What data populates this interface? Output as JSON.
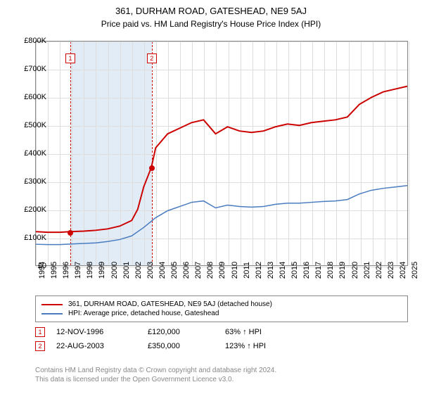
{
  "title": "361, DURHAM ROAD, GATESHEAD, NE9 5AJ",
  "subtitle": "Price paid vs. HM Land Registry's House Price Index (HPI)",
  "chart": {
    "type": "line",
    "background_color": "#ffffff",
    "grid_color": "#dddddd",
    "border_color": "#888888",
    "y": {
      "min": 0,
      "max": 800000,
      "step": 100000,
      "prefix": "£",
      "suffix": "K",
      "divisor": 1000,
      "fontsize": 11
    },
    "x": {
      "min": 1994,
      "max": 2025,
      "step": 1,
      "fontsize": 11,
      "rotation": -90
    },
    "highlight": {
      "band_color": "#e2ecf7",
      "edge_color": "#cc0000",
      "start_year": 1996.87,
      "end_year": 2003.64
    },
    "series": [
      {
        "name": "361, DURHAM ROAD, GATESHEAD, NE9 5AJ (detached house)",
        "color": "#cc0000",
        "width": 2,
        "points": [
          [
            1994,
            120000
          ],
          [
            1995,
            118000
          ],
          [
            1996,
            118000
          ],
          [
            1996.87,
            120000
          ],
          [
            1998,
            122000
          ],
          [
            1999,
            125000
          ],
          [
            2000,
            130000
          ],
          [
            2001,
            140000
          ],
          [
            2002,
            160000
          ],
          [
            2002.5,
            200000
          ],
          [
            2003,
            280000
          ],
          [
            2003.64,
            350000
          ],
          [
            2004,
            420000
          ],
          [
            2005,
            470000
          ],
          [
            2006,
            490000
          ],
          [
            2007,
            510000
          ],
          [
            2008,
            520000
          ],
          [
            2009,
            470000
          ],
          [
            2010,
            495000
          ],
          [
            2011,
            480000
          ],
          [
            2012,
            475000
          ],
          [
            2013,
            480000
          ],
          [
            2014,
            495000
          ],
          [
            2015,
            505000
          ],
          [
            2016,
            500000
          ],
          [
            2017,
            510000
          ],
          [
            2018,
            515000
          ],
          [
            2019,
            520000
          ],
          [
            2020,
            530000
          ],
          [
            2021,
            575000
          ],
          [
            2022,
            600000
          ],
          [
            2023,
            620000
          ],
          [
            2024,
            630000
          ],
          [
            2025,
            640000
          ]
        ]
      },
      {
        "name": "HPI: Average price, detached house, Gateshead",
        "color": "#4a7cbf",
        "width": 1.5,
        "points": [
          [
            1994,
            75000
          ],
          [
            1995,
            74000
          ],
          [
            1996,
            74000
          ],
          [
            1997,
            76000
          ],
          [
            1998,
            78000
          ],
          [
            1999,
            80000
          ],
          [
            2000,
            85000
          ],
          [
            2001,
            92000
          ],
          [
            2002,
            105000
          ],
          [
            2003,
            135000
          ],
          [
            2004,
            170000
          ],
          [
            2005,
            195000
          ],
          [
            2006,
            210000
          ],
          [
            2007,
            225000
          ],
          [
            2008,
            230000
          ],
          [
            2009,
            205000
          ],
          [
            2010,
            215000
          ],
          [
            2011,
            210000
          ],
          [
            2012,
            208000
          ],
          [
            2013,
            210000
          ],
          [
            2014,
            218000
          ],
          [
            2015,
            222000
          ],
          [
            2016,
            222000
          ],
          [
            2017,
            225000
          ],
          [
            2018,
            228000
          ],
          [
            2019,
            230000
          ],
          [
            2020,
            235000
          ],
          [
            2021,
            255000
          ],
          [
            2022,
            268000
          ],
          [
            2023,
            275000
          ],
          [
            2024,
            280000
          ],
          [
            2025,
            285000
          ]
        ]
      }
    ],
    "sale_markers": [
      {
        "idx": "1",
        "year": 1996.87,
        "price": 120000,
        "label_y": 740000
      },
      {
        "idx": "2",
        "year": 2003.64,
        "price": 350000,
        "label_y": 740000
      }
    ]
  },
  "legend": {
    "items": [
      {
        "color": "#cc0000",
        "label": "361, DURHAM ROAD, GATESHEAD, NE9 5AJ (detached house)"
      },
      {
        "color": "#4a7cbf",
        "label": "HPI: Average price, detached house, Gateshead"
      }
    ]
  },
  "sales": [
    {
      "idx": "1",
      "date": "12-NOV-1996",
      "price": "£120,000",
      "delta": "63% ↑ HPI"
    },
    {
      "idx": "2",
      "date": "22-AUG-2003",
      "price": "£350,000",
      "delta": "123% ↑ HPI"
    }
  ],
  "footer": {
    "line1": "Contains HM Land Registry data © Crown copyright and database right 2024.",
    "line2": "This data is licensed under the Open Government Licence v3.0."
  }
}
